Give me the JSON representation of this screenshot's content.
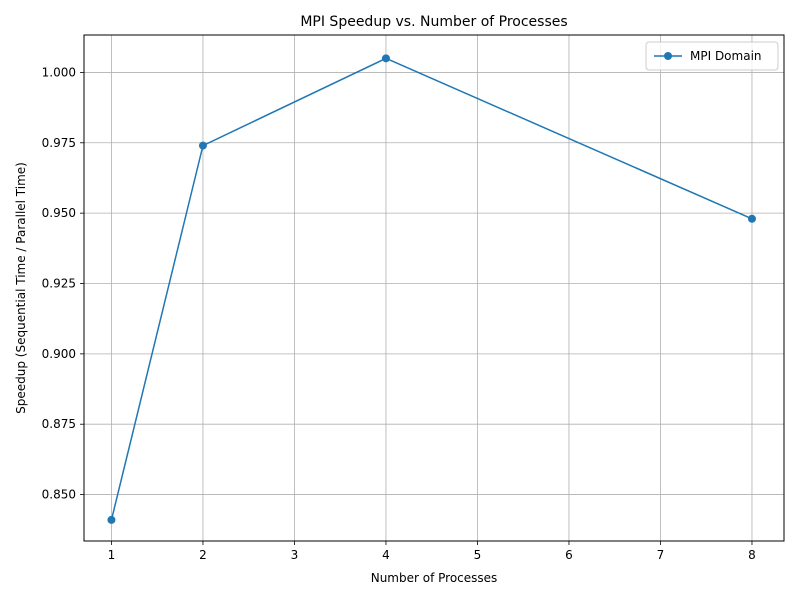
{
  "chart_data": {
    "type": "line",
    "title": "MPI Speedup vs. Number of Processes",
    "xlabel": "Number of Processes",
    "ylabel": "Speedup (Sequential Time / Parallel Time)",
    "xlim": [
      0.7,
      8.35
    ],
    "ylim": [
      0.8335,
      1.0133
    ],
    "xticks": [
      1,
      2,
      3,
      4,
      5,
      6,
      7,
      8
    ],
    "yticks": [
      0.85,
      0.875,
      0.9,
      0.925,
      0.95,
      0.975,
      1.0
    ],
    "ytick_labels": [
      "0.850",
      "0.875",
      "0.900",
      "0.925",
      "0.950",
      "0.975",
      "1.000"
    ],
    "grid": true,
    "legend_position": "top-right",
    "series": [
      {
        "name": "MPI Domain",
        "color": "#1f77b4",
        "marker": "circle",
        "x": [
          1,
          2,
          4,
          8
        ],
        "y": [
          0.841,
          0.974,
          1.005,
          0.948
        ]
      }
    ]
  }
}
